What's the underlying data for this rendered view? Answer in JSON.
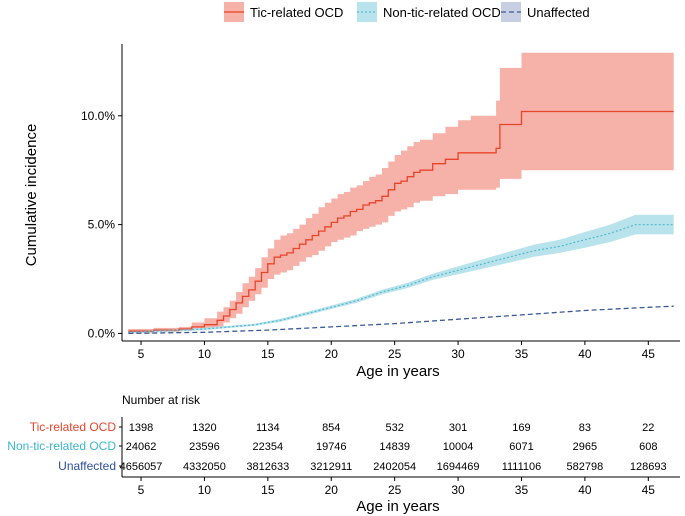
{
  "chart_data": {
    "type": "line",
    "title": "",
    "xlabel": "Age in years",
    "ylabel": "Cumulative incidence",
    "xlim": [
      3.5,
      47.5
    ],
    "ylim": [
      -0.0035,
      0.133
    ],
    "x_ticks": [
      5,
      10,
      15,
      20,
      25,
      30,
      35,
      40,
      45
    ],
    "x_tick_labels": [
      "5",
      "10",
      "15",
      "20",
      "25",
      "30",
      "35",
      "40",
      "45"
    ],
    "y_ticks": [
      0,
      0.05,
      0.1
    ],
    "y_tick_labels": [
      "0.0%",
      "5.0%",
      "10.0%"
    ],
    "grid": false,
    "legend_position": "top",
    "series": [
      {
        "name": "Tic-related OCD",
        "color": "#e8442b",
        "band_color": "#f6b1a8",
        "line_style": "step",
        "x": [
          4,
          6,
          8,
          9,
          10,
          11,
          11.5,
          12,
          12.5,
          13,
          13.5,
          14,
          14.5,
          15,
          15.5,
          16,
          16.5,
          17,
          17.5,
          18,
          18.5,
          19,
          19.5,
          20,
          20.5,
          21,
          21.5,
          22,
          22.5,
          23,
          23.5,
          24,
          24.5,
          25,
          25.5,
          26,
          26.5,
          27,
          28,
          29,
          30,
          31,
          33,
          33.3,
          35,
          47
        ],
        "values": [
          0.001,
          0.0015,
          0.002,
          0.003,
          0.004,
          0.006,
          0.008,
          0.011,
          0.014,
          0.017,
          0.02,
          0.024,
          0.028,
          0.032,
          0.035,
          0.036,
          0.037,
          0.039,
          0.041,
          0.043,
          0.045,
          0.047,
          0.049,
          0.051,
          0.053,
          0.054,
          0.056,
          0.057,
          0.059,
          0.06,
          0.061,
          0.063,
          0.066,
          0.069,
          0.07,
          0.072,
          0.074,
          0.075,
          0.078,
          0.08,
          0.083,
          0.083,
          0.085,
          0.096,
          0.102,
          0.102
        ],
        "lower": [
          0.0,
          0.0005,
          0.001,
          0.0015,
          0.002,
          0.003,
          0.005,
          0.007,
          0.009,
          0.012,
          0.015,
          0.018,
          0.021,
          0.025,
          0.027,
          0.028,
          0.029,
          0.031,
          0.033,
          0.035,
          0.036,
          0.038,
          0.04,
          0.042,
          0.043,
          0.044,
          0.045,
          0.047,
          0.048,
          0.049,
          0.05,
          0.051,
          0.054,
          0.056,
          0.057,
          0.058,
          0.06,
          0.061,
          0.063,
          0.064,
          0.066,
          0.066,
          0.067,
          0.071,
          0.075,
          0.075
        ],
        "upper": [
          0.002,
          0.0025,
          0.003,
          0.005,
          0.007,
          0.01,
          0.012,
          0.015,
          0.019,
          0.023,
          0.026,
          0.03,
          0.035,
          0.039,
          0.043,
          0.045,
          0.046,
          0.048,
          0.05,
          0.053,
          0.055,
          0.058,
          0.06,
          0.062,
          0.064,
          0.065,
          0.067,
          0.068,
          0.07,
          0.072,
          0.073,
          0.076,
          0.079,
          0.082,
          0.084,
          0.086,
          0.088,
          0.089,
          0.092,
          0.095,
          0.098,
          0.1,
          0.107,
          0.122,
          0.129,
          0.129
        ]
      },
      {
        "name": "Non-tic-related OCD",
        "color": "#5bbccd",
        "band_color": "#b9e3ec",
        "line_style": "dotted",
        "x": [
          4,
          8,
          10,
          12,
          14,
          16,
          18,
          20,
          22,
          24,
          26,
          28,
          30,
          32,
          34,
          36,
          38,
          40,
          42,
          44,
          47
        ],
        "values": [
          0.0005,
          0.0015,
          0.002,
          0.003,
          0.004,
          0.006,
          0.009,
          0.012,
          0.015,
          0.019,
          0.022,
          0.026,
          0.029,
          0.032,
          0.035,
          0.038,
          0.04,
          0.043,
          0.046,
          0.05,
          0.05
        ],
        "lower": [
          0.0,
          0.001,
          0.0015,
          0.0025,
          0.0035,
          0.0053,
          0.0082,
          0.0112,
          0.0141,
          0.0179,
          0.0208,
          0.0246,
          0.0272,
          0.0298,
          0.0325,
          0.0352,
          0.037,
          0.0394,
          0.042,
          0.0455,
          0.0455
        ],
        "upper": [
          0.001,
          0.002,
          0.0025,
          0.0035,
          0.0045,
          0.0067,
          0.0098,
          0.0128,
          0.0159,
          0.0201,
          0.0232,
          0.0274,
          0.0308,
          0.0342,
          0.0375,
          0.0408,
          0.043,
          0.0466,
          0.05,
          0.0545,
          0.0545
        ]
      },
      {
        "name": "Unaffected",
        "color": "#3b5a9a",
        "band_color": "#c9cfe3",
        "line_style": "dashed",
        "x": [
          4,
          10,
          15,
          20,
          25,
          30,
          35,
          40,
          45,
          47
        ],
        "values": [
          0.0,
          0.0005,
          0.0015,
          0.003,
          0.0045,
          0.0065,
          0.0085,
          0.0105,
          0.012,
          0.0125
        ],
        "lower": [
          0.0,
          0.0005,
          0.0015,
          0.003,
          0.0045,
          0.0065,
          0.0085,
          0.0105,
          0.012,
          0.0125
        ],
        "upper": [
          0.0,
          0.0005,
          0.0015,
          0.003,
          0.0045,
          0.0065,
          0.0085,
          0.0105,
          0.012,
          0.0125
        ]
      }
    ]
  },
  "risk_table": {
    "title": "Number at risk",
    "xlabel": "Age in years",
    "x_ticks": [
      5,
      10,
      15,
      20,
      25,
      30,
      35,
      40,
      45
    ],
    "x_tick_labels": [
      "5",
      "10",
      "15",
      "20",
      "25",
      "30",
      "35",
      "40",
      "45"
    ],
    "rows": [
      {
        "name": "Tic-related OCD",
        "color": "#e8442b",
        "counts": [
          "1398",
          "1320",
          "1134",
          "854",
          "532",
          "301",
          "169",
          "83",
          "22"
        ]
      },
      {
        "name": "Non-tic-related OCD",
        "color": "#3cb6cf",
        "counts": [
          "24062",
          "23596",
          "22354",
          "19746",
          "14839",
          "10004",
          "6071",
          "2965",
          "608"
        ]
      },
      {
        "name": "Unaffected",
        "color": "#2f4f99",
        "counts": [
          "4656057",
          "4332050",
          "3812633",
          "3212911",
          "2402054",
          "1694469",
          "1111106",
          "582798",
          "128693"
        ]
      }
    ]
  }
}
